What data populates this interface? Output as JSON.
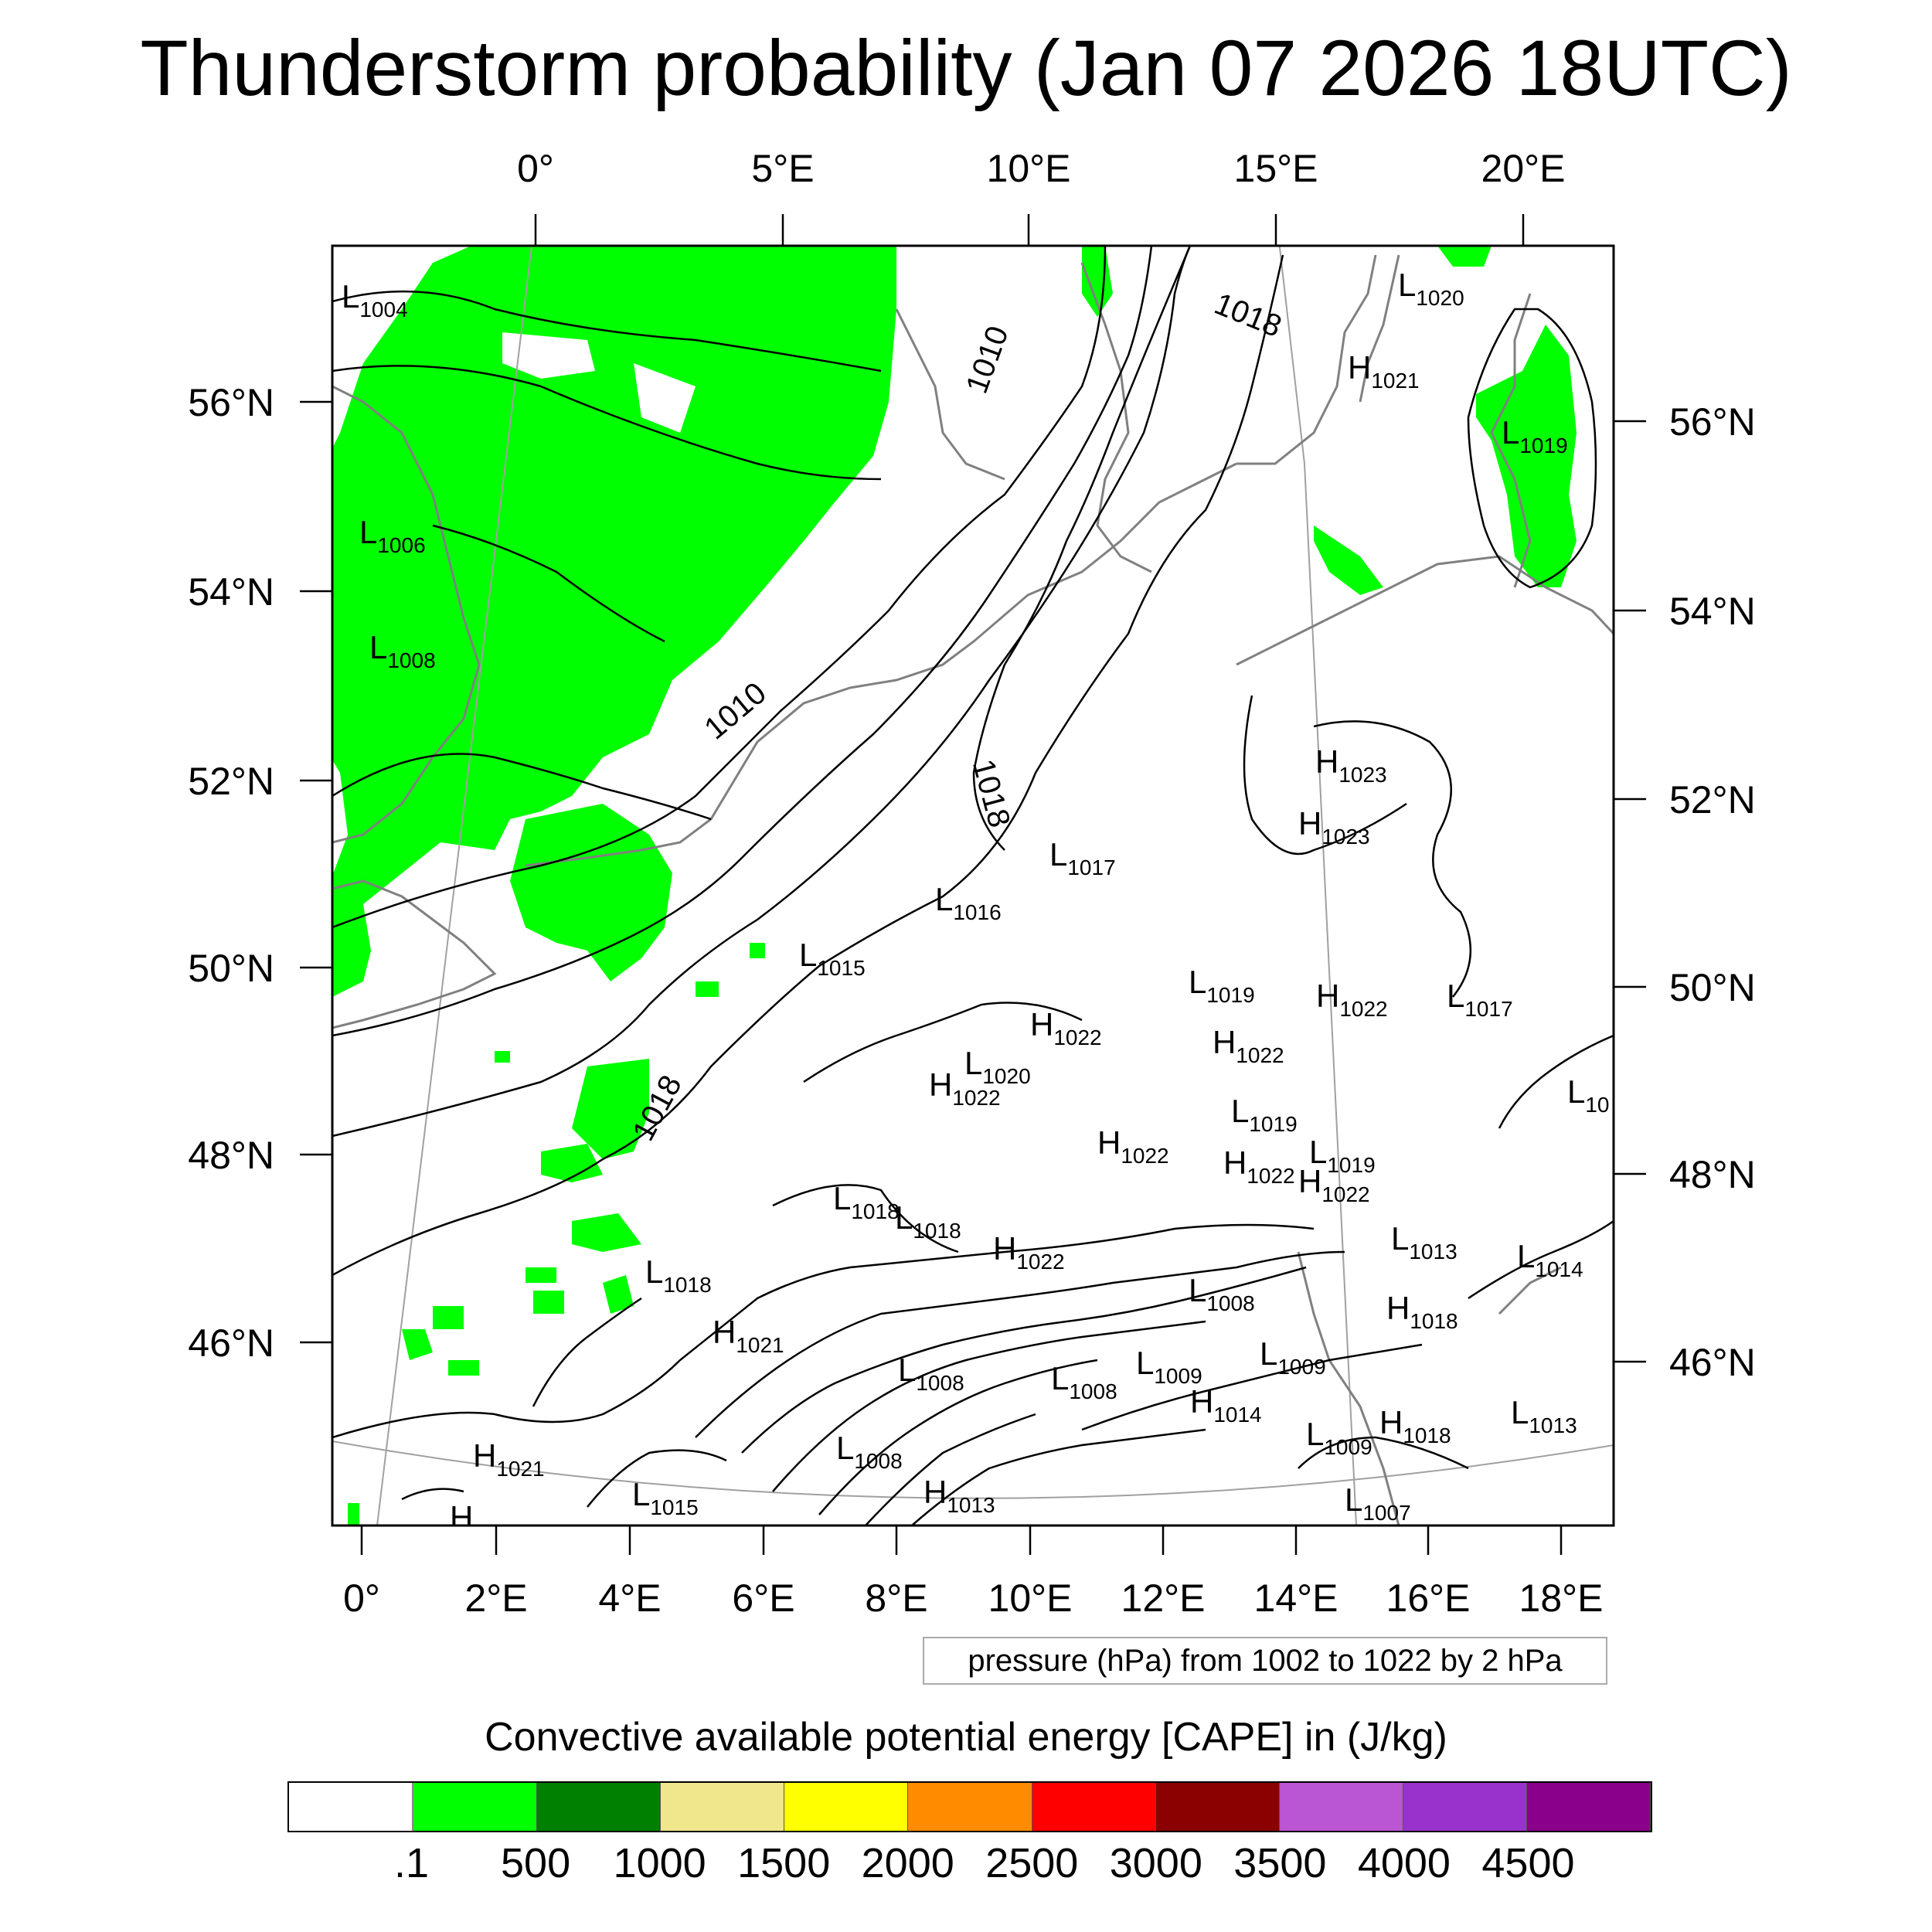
{
  "title": "Thunderstorm probability (Jan 07 2026 18UTC)",
  "top_longitudes": [
    "0°",
    "5°E",
    "10°E",
    "15°E",
    "20°E"
  ],
  "bottom_longitudes": [
    "0°",
    "2°E",
    "4°E",
    "6°E",
    "8°E",
    "10°E",
    "12°E",
    "14°E",
    "16°E",
    "18°E"
  ],
  "left_latitudes": [
    "56°N",
    "54°N",
    "52°N",
    "50°N",
    "48°N",
    "46°N"
  ],
  "right_latitudes": [
    "56°N",
    "54°N",
    "52°N",
    "50°N",
    "48°N",
    "46°N"
  ],
  "contour_labels": [
    "1010",
    "1018",
    "1010",
    "1018",
    "1018"
  ],
  "pressure_systems": [
    {
      "letter": "L",
      "value": "1004"
    },
    {
      "letter": "L",
      "value": "1006"
    },
    {
      "letter": "L",
      "value": "1008"
    },
    {
      "letter": "L",
      "value": "1020"
    },
    {
      "letter": "H",
      "value": "1021"
    },
    {
      "letter": "L",
      "value": "1019"
    },
    {
      "letter": "H",
      "value": "1023"
    },
    {
      "letter": "H",
      "value": "1023"
    },
    {
      "letter": "L",
      "value": "1017"
    },
    {
      "letter": "L",
      "value": "1016"
    },
    {
      "letter": "L",
      "value": "1015"
    },
    {
      "letter": "L",
      "value": "1019"
    },
    {
      "letter": "H",
      "value": "1022"
    },
    {
      "letter": "L",
      "value": "1017"
    },
    {
      "letter": "H",
      "value": "1022"
    },
    {
      "letter": "H",
      "value": "1022"
    },
    {
      "letter": "L",
      "value": "1020"
    },
    {
      "letter": "H",
      "value": "1022"
    },
    {
      "letter": "L",
      "value": "10"
    },
    {
      "letter": "L",
      "value": "1019"
    },
    {
      "letter": "H",
      "value": "1022"
    },
    {
      "letter": "H",
      "value": "1022"
    },
    {
      "letter": "L",
      "value": "1019"
    },
    {
      "letter": "H",
      "value": "1022"
    },
    {
      "letter": "L",
      "value": "1018"
    },
    {
      "letter": "L",
      "value": "1018"
    },
    {
      "letter": "H",
      "value": "1022"
    },
    {
      "letter": "L",
      "value": "1013"
    },
    {
      "letter": "L",
      "value": "1014"
    },
    {
      "letter": "L",
      "value": "1018"
    },
    {
      "letter": "L",
      "value": "1008"
    },
    {
      "letter": "H",
      "value": "1018"
    },
    {
      "letter": "H",
      "value": "1021"
    },
    {
      "letter": "L",
      "value": "1008"
    },
    {
      "letter": "L",
      "value": "1008"
    },
    {
      "letter": "L",
      "value": "1009"
    },
    {
      "letter": "L",
      "value": "1009"
    },
    {
      "letter": "H",
      "value": "1014"
    },
    {
      "letter": "H",
      "value": "1018"
    },
    {
      "letter": "L",
      "value": "1013"
    },
    {
      "letter": "L",
      "value": "1008"
    },
    {
      "letter": "L",
      "value": "1009"
    },
    {
      "letter": "H",
      "value": "1021"
    },
    {
      "letter": "L",
      "value": "1015"
    },
    {
      "letter": "H",
      "value": "1013"
    },
    {
      "letter": "L",
      "value": "1007"
    },
    {
      "letter": "H",
      "value": ""
    }
  ],
  "pressure_note": "pressure (hPa) from 1002 to 1022 by 2 hPa",
  "colorbar": {
    "title": "Convective available potential energy [CAPE] in (J/kg)",
    "colors": [
      "#ffffff",
      "#00ff00",
      "#008000",
      "#f0e68c",
      "#ffff00",
      "#ff8c00",
      "#ff0000",
      "#8b0000",
      "#ba55d3",
      "#9932cc",
      "#8b008b"
    ],
    "labels": [
      ".1",
      "500",
      "1000",
      "1500",
      "2000",
      "2500",
      "3000",
      "3500",
      "4000",
      "4500"
    ]
  },
  "colors": {
    "cape_green": "#00ff00",
    "contour": "#000000",
    "coast": "#808080",
    "grid": "#a0a0a0"
  }
}
